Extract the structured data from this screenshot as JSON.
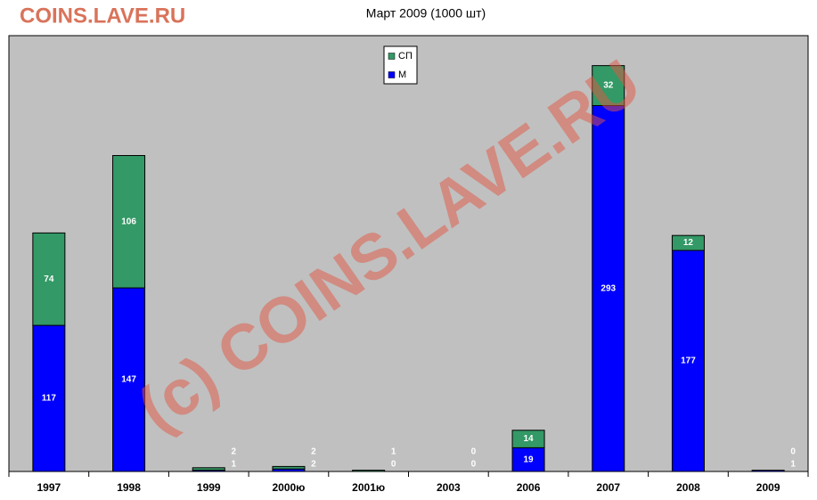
{
  "brand": "COINS.LAVE.RU",
  "watermark": "(c) COINS.LAVE.RU",
  "chart_data": {
    "type": "stacked-bar",
    "title": "Март 2009 (1000 шт)",
    "categories": [
      "1997",
      "1998",
      "1999",
      "2000ю",
      "2001ю",
      "2003",
      "2006",
      "2007",
      "2008",
      "2009"
    ],
    "series": [
      {
        "name": "М",
        "color": "#0000ff",
        "values": [
          117,
          147,
          1,
          2,
          0,
          0,
          19,
          293,
          177,
          1
        ]
      },
      {
        "name": "СП",
        "color": "#339966",
        "values": [
          74,
          106,
          2,
          2,
          1,
          0,
          14,
          32,
          12,
          0
        ]
      }
    ],
    "ylim": [
      0,
      349
    ]
  }
}
